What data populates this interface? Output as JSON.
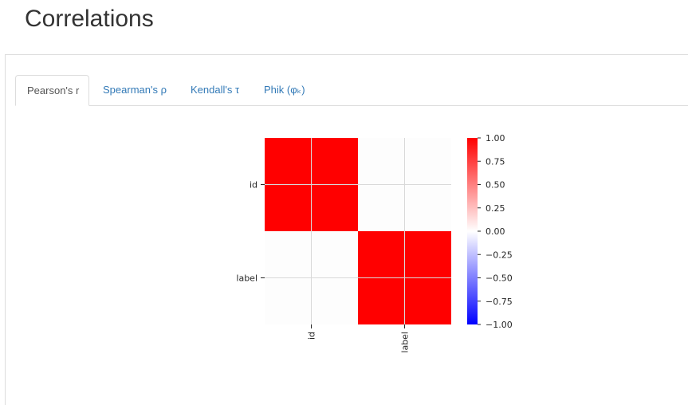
{
  "page": {
    "title": "Correlations"
  },
  "tabs": [
    {
      "label": "Pearson's r",
      "active": true
    },
    {
      "label": "Spearman's ρ",
      "active": false
    },
    {
      "label": "Kendall's τ",
      "active": false
    },
    {
      "label": "Phik (φₖ)",
      "active": false
    }
  ],
  "chart_data": {
    "type": "heatmap",
    "title": "",
    "variables": [
      "id",
      "label"
    ],
    "x_tick_labels": [
      "id",
      "label"
    ],
    "y_tick_labels": [
      "id",
      "label"
    ],
    "matrix": [
      [
        1.0,
        0.0
      ],
      [
        0.0,
        1.0
      ]
    ],
    "colormap": "bwr",
    "colorbar": {
      "vmin": -1.0,
      "vmax": 1.0,
      "ticks": [
        "1.00",
        "0.75",
        "0.50",
        "0.25",
        "0.00",
        "−0.25",
        "−0.50",
        "−0.75",
        "−1.00"
      ]
    },
    "colors": {
      "max": "#ff0000",
      "mid": "#ffffff",
      "min": "#0000ff",
      "cell_gridlines": "#d9d9d9"
    }
  }
}
